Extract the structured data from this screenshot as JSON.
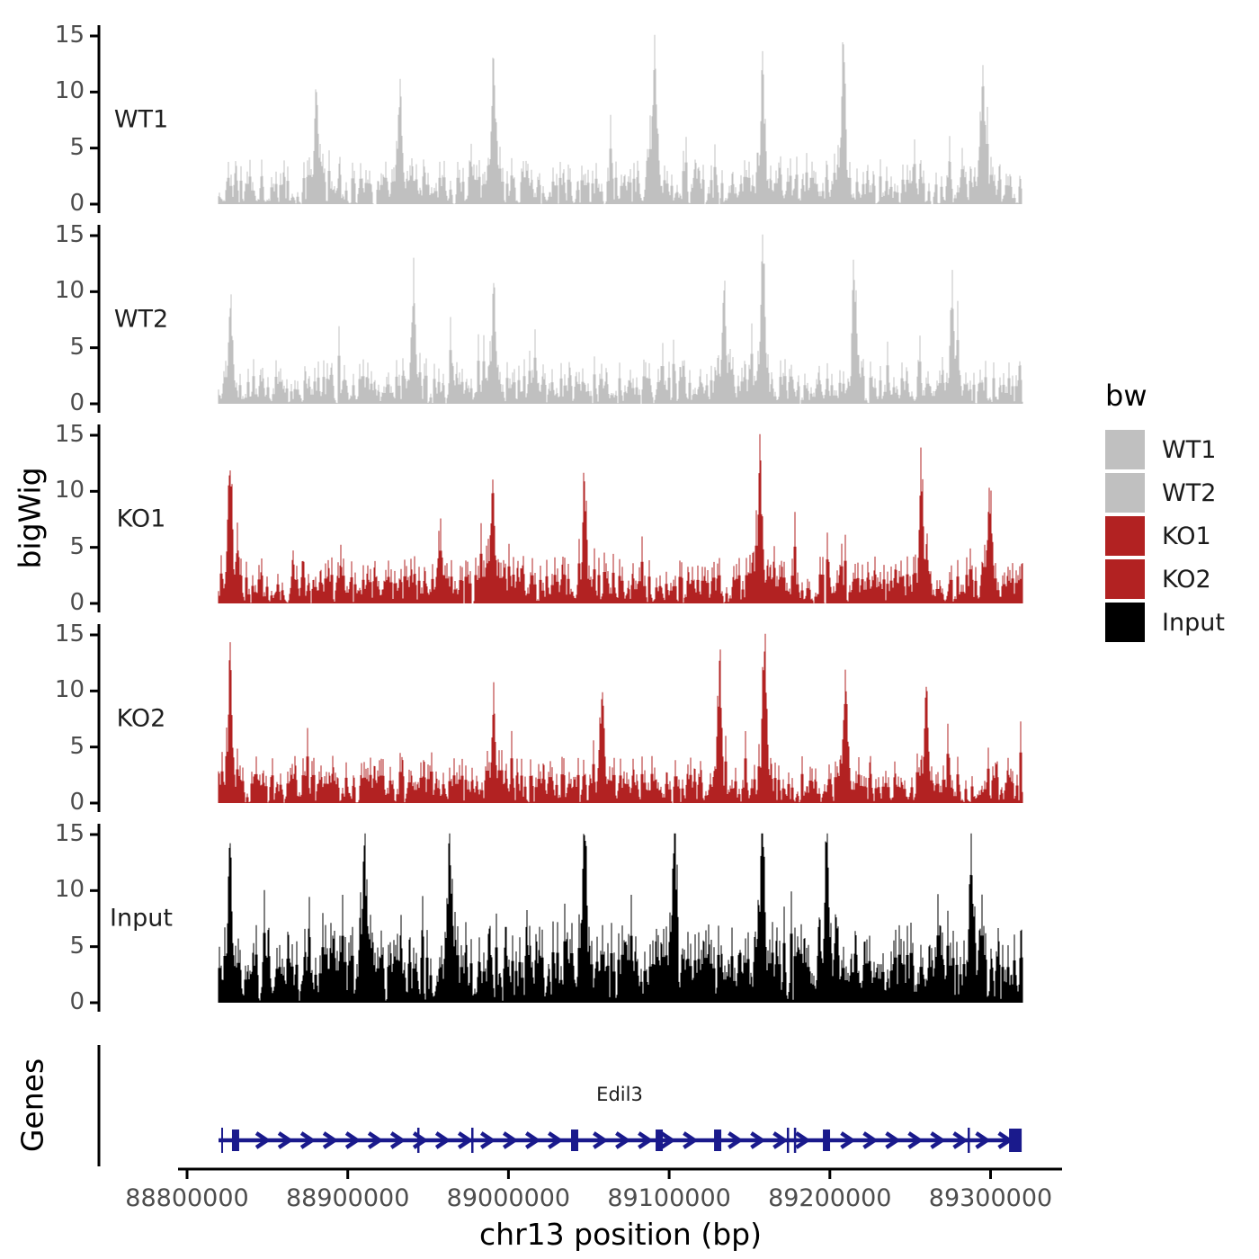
{
  "y_axis": {
    "label": "bigWig",
    "tick_values": [
      0,
      5,
      10,
      15
    ],
    "limits": [
      0,
      15
    ]
  },
  "x_axis": {
    "label": "chr13 position (bp)",
    "tick_values": [
      88800000,
      88900000,
      89000000,
      89100000,
      89200000,
      89300000
    ],
    "tick_labels": [
      "88800000",
      "88900000",
      "89000000",
      "89100000",
      "89200000",
      "89300000"
    ]
  },
  "legend": {
    "title": "bw",
    "entries": [
      {
        "label": "WT1",
        "color": "#C0C0C0"
      },
      {
        "label": "WT2",
        "color": "#C0C0C0"
      },
      {
        "label": "KO1",
        "color": "#B22222"
      },
      {
        "label": "KO2",
        "color": "#B22222"
      },
      {
        "label": "Input",
        "color": "#000000"
      }
    ]
  },
  "gene_panel": {
    "label": "Genes",
    "gene_name": "Edil3"
  },
  "colors": {
    "axis_line": "#000000",
    "tick_text": "#4d4d4d",
    "track_label_text": "#1f1f1f",
    "gene_blue": "#1A1A8C"
  },
  "chart_data": {
    "type": "area",
    "description": "bigWig coverage tracks (signal spikes, values 0-15) across chr13 Edil3 locus; noisy per-base coverage approximated by seeded pseudo-random generation plus listed major peaks",
    "x_range_bp": [
      88819600,
      89318800
    ],
    "ylim": [
      0,
      15
    ],
    "y_ticks": [
      0,
      5,
      10,
      15
    ],
    "tracks": [
      {
        "name": "WT1",
        "color": "#C0C0C0",
        "seed": 11,
        "base": 4.0,
        "exp": 2.6,
        "spike_p": 0.05,
        "spike_amp": 5.0,
        "peaks_bp": [
          [
            88880600,
            9.6
          ],
          [
            88932600,
            9.4
          ],
          [
            88991000,
            11.5
          ],
          [
            89090900,
            13.0
          ],
          [
            89158100,
            10.8
          ],
          [
            89208400,
            12.4
          ],
          [
            89295100,
            11.4
          ]
        ]
      },
      {
        "name": "WT2",
        "color": "#C0C0C0",
        "seed": 22,
        "base": 4.0,
        "exp": 2.6,
        "spike_p": 0.05,
        "spike_amp": 5.0,
        "peaks_bp": [
          [
            88826900,
            8.2
          ],
          [
            88941000,
            9.0
          ],
          [
            88991000,
            8.8
          ],
          [
            89134000,
            9.6
          ],
          [
            89158100,
            13.6
          ],
          [
            89215100,
            9.8
          ],
          [
            89276000,
            9.2
          ]
        ]
      },
      {
        "name": "KO1",
        "color": "#B22222",
        "seed": 33,
        "base": 4.2,
        "exp": 2.5,
        "spike_p": 0.06,
        "spike_amp": 5.2,
        "peaks_bp": [
          [
            88826900,
            11.3
          ],
          [
            88990000,
            10.6
          ],
          [
            89047300,
            8.6
          ],
          [
            89156400,
            12.0
          ],
          [
            89257200,
            9.6
          ],
          [
            89299000,
            8.7
          ]
        ]
      },
      {
        "name": "KO2",
        "color": "#B22222",
        "seed": 44,
        "base": 4.2,
        "exp": 2.5,
        "spike_p": 0.06,
        "spike_amp": 5.2,
        "peaks_bp": [
          [
            88826900,
            11.0
          ],
          [
            88991000,
            8.4
          ],
          [
            89058500,
            9.4
          ],
          [
            89131300,
            9.2
          ],
          [
            89159200,
            12.9
          ],
          [
            89209500,
            9.6
          ],
          [
            89259900,
            9.9
          ]
        ]
      },
      {
        "name": "Input",
        "color": "#000000",
        "seed": 55,
        "base": 7.2,
        "exp": 1.8,
        "spike_p": 0.1,
        "spike_amp": 4.5,
        "peaks_bp": [
          [
            88826900,
            12.0
          ],
          [
            88910200,
            12.3
          ],
          [
            88963400,
            11.4
          ],
          [
            89047300,
            10.6
          ],
          [
            89103300,
            11.0
          ],
          [
            89158100,
            14.8
          ],
          [
            89198400,
            12.5
          ],
          [
            89287900,
            11.2
          ]
        ]
      }
    ],
    "gene": {
      "name": "Edil3",
      "strand": "+",
      "start_bp": 88819600,
      "end_bp": 89318800,
      "exon_marks_bp": [
        88830200,
        89041200,
        89093800,
        89130200,
        89197900
      ],
      "minor_marks_bp": [
        88943800,
        88977400,
        89173800,
        89178200,
        89286300
      ],
      "arrow_spacing_bp": 14000
    }
  }
}
